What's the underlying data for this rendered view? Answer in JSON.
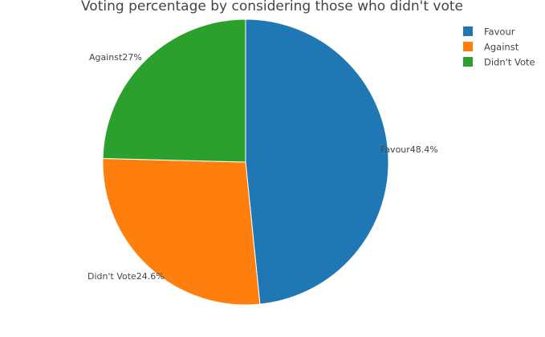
{
  "chart_data": {
    "type": "pie",
    "title": "Voting percentage by considering those who didn't vote",
    "slices": [
      {
        "label": "Favour",
        "value": 48.4,
        "display": "48.4%",
        "color": "#1f77b4"
      },
      {
        "label": "Against",
        "value": 27.0,
        "display": "27%",
        "color": "#ff7f0e"
      },
      {
        "label": "Didn't Vote",
        "value": 24.6,
        "display": "24.6%",
        "color": "#2ca02c"
      }
    ],
    "legend": {
      "placement": "top-right",
      "entries": [
        "Favour",
        "Against",
        "Didn't Vote"
      ]
    },
    "start": "12 o'clock",
    "direction": "clockwise",
    "slice_border_color": "#ffffff"
  }
}
